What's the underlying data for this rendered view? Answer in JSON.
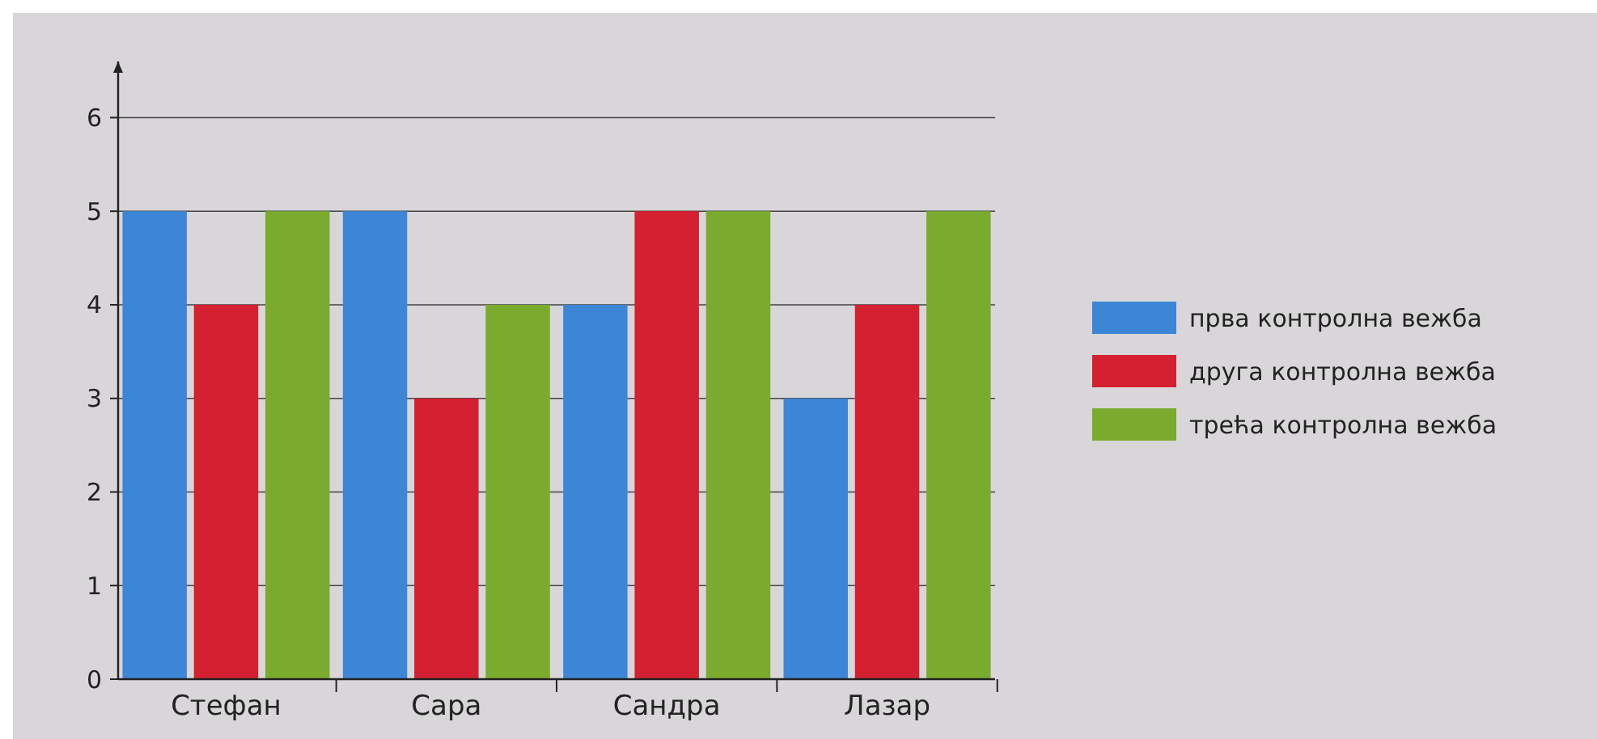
{
  "chart_data": {
    "type": "bar",
    "categories": [
      "Стефан",
      "Сара",
      "Сандра",
      "Лазар"
    ],
    "series": [
      {
        "name": "прва контролна вежба",
        "color": "#3d86d6",
        "values": [
          5,
          5,
          4,
          3
        ]
      },
      {
        "name": "друга контролна вежба",
        "color": "#d42030",
        "values": [
          4,
          3,
          5,
          4
        ]
      },
      {
        "name": "трећа контролна вежба",
        "color": "#7aab2e",
        "values": [
          5,
          4,
          5,
          5
        ]
      }
    ],
    "ylim": [
      0,
      6.6
    ],
    "yticks": [
      0,
      1,
      2,
      3,
      4,
      5,
      6
    ],
    "grid": "y",
    "legend": "right"
  }
}
